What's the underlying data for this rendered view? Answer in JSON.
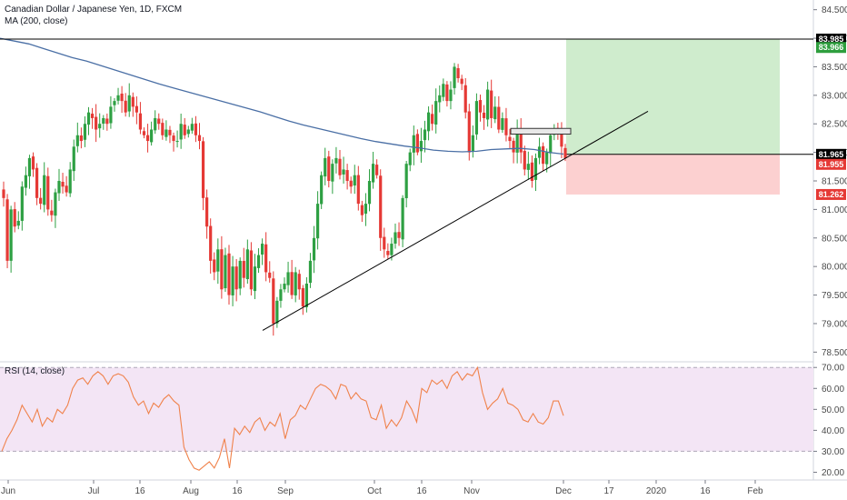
{
  "header": {
    "title": "Canadian Dollar / Japanese Yen, 1D, FXCM",
    "ma_label": "MA (200, close)",
    "rsi_label": "RSI (14, close)"
  },
  "colors": {
    "up": "#26a69a",
    "down": "#ef5350",
    "up_candle": "#2ea043",
    "down_candle": "#e53935",
    "ma": "#4a6fa5",
    "rsi": "#f0824b",
    "rsi_band": "#f3e5f5",
    "profit_zone": "#cfeccd",
    "loss_zone": "#fcd0d0",
    "level_tag_black": "#000000",
    "level_tag_green": "#2e9e3e",
    "level_tag_red": "#e53935"
  },
  "chart_data": [
    {
      "type": "candlestick",
      "title": "Canadian Dollar / Japanese Yen, 1D, FXCM",
      "xlabel": "",
      "ylabel": "",
      "ylim": [
        78.33,
        84.67
      ],
      "y_ticks": [
        "84.500",
        "84.000",
        "83.500",
        "83.000",
        "82.500",
        "82.000",
        "81.500",
        "81.000",
        "80.500",
        "80.000",
        "79.500",
        "79.000",
        "78.500"
      ],
      "x_ticks": [
        "Jun",
        "Jul",
        "16",
        "Aug",
        "16",
        "Sep",
        "Oct",
        "16",
        "Nov",
        "Dec",
        "17",
        "2020",
        "16",
        "Feb"
      ],
      "candles_close": [
        81.2,
        80.1,
        81.0,
        80.7,
        80.8,
        81.4,
        81.6,
        81.9,
        81.7,
        81.2,
        81.1,
        81.6,
        81.0,
        80.9,
        81.3,
        81.5,
        81.4,
        81.3,
        81.7,
        82.1,
        82.3,
        82.2,
        82.5,
        82.7,
        82.6,
        82.4,
        82.5,
        82.6,
        82.5,
        82.8,
        82.9,
        83.0,
        82.9,
        82.7,
        83.0,
        82.8,
        82.7,
        82.4,
        82.3,
        82.2,
        82.4,
        82.6,
        82.5,
        82.3,
        82.4,
        82.3,
        82.2,
        82.2,
        82.5,
        82.3,
        82.4,
        82.5,
        82.3,
        82.2,
        81.2,
        80.7,
        80.1,
        79.9,
        80.3,
        79.6,
        80.2,
        79.5,
        80.0,
        79.6,
        80.1,
        79.8,
        80.3,
        79.6,
        80.0,
        80.2,
        80.4,
        79.9,
        79.8,
        79.0,
        79.4,
        79.6,
        79.7,
        79.9,
        79.5,
        79.9,
        79.6,
        79.3,
        79.7,
        80.1,
        80.5,
        81.1,
        81.6,
        81.9,
        81.5,
        81.8,
        81.9,
        81.6,
        81.7,
        81.5,
        81.4,
        81.6,
        81.1,
        80.9,
        81.1,
        81.5,
        81.8,
        81.6,
        80.5,
        80.3,
        80.2,
        80.4,
        80.6,
        80.5,
        81.2,
        81.8,
        82.0,
        82.3,
        82.0,
        82.2,
        82.4,
        82.7,
        82.5,
        82.9,
        83.0,
        83.2,
        82.9,
        83.1,
        83.5,
        83.3,
        83.2,
        82.7,
        82.0,
        82.3,
        82.9,
        82.7,
        82.6,
        83.1,
        82.6,
        82.8,
        82.4,
        82.6,
        82.3,
        82.2,
        82.0,
        82.4,
        82.0,
        81.7,
        81.8,
        81.5,
        81.9,
        82.1,
        81.8,
        82.0,
        82.3,
        82.4,
        82.4,
        82.1,
        81.9
      ],
      "moving_average": {
        "name": "MA (200, close)",
        "values": [
          84.0,
          83.95,
          83.9,
          83.82,
          83.74,
          83.66,
          83.6,
          83.52,
          83.44,
          83.36,
          83.28,
          83.2,
          83.13,
          83.06,
          82.99,
          82.92,
          82.85,
          82.78,
          82.71,
          82.63,
          82.55,
          82.48,
          82.42,
          82.36,
          82.3,
          82.24,
          82.19,
          82.15,
          82.11,
          82.08,
          82.04,
          82.02,
          82.01,
          82.02,
          82.05,
          82.06,
          82.07,
          82.05,
          82.0,
          81.97
        ]
      },
      "trendline": {
        "from": [
          "Aug 22",
          78.88
        ],
        "to": [
          "Dec 27",
          82.72
        ]
      },
      "horizontal_line": 83.985,
      "position": {
        "entry": 81.965,
        "target": 83.985,
        "stop": 81.262
      },
      "price_tags": [
        {
          "label": "83.985",
          "value": 83.985,
          "color": "black"
        },
        {
          "label": "83.966",
          "value": 83.838,
          "color": "green"
        },
        {
          "label": "81.965",
          "value": 81.965,
          "color": "black"
        },
        {
          "label": "81.955",
          "value": 81.79,
          "color": "red"
        },
        {
          "label": "81.262",
          "value": 81.262,
          "color": "red"
        }
      ]
    },
    {
      "type": "line",
      "title": "RSI (14, close)",
      "ylim": [
        16.3,
        72.7
      ],
      "y_ticks": [
        "70.00",
        "60.00",
        "50.00",
        "40.00",
        "30.00",
        "20.00"
      ],
      "band": [
        30,
        70
      ],
      "series": [
        {
          "name": "RSI (14, close)",
          "values": [
            30,
            36,
            40,
            45,
            52,
            48,
            44,
            50,
            42,
            46,
            44,
            50,
            48,
            52,
            60,
            64,
            65,
            62,
            66,
            68,
            66,
            62,
            66,
            67,
            66,
            63,
            56,
            52,
            54,
            48,
            53,
            51,
            55,
            57,
            54,
            52,
            32,
            26,
            22,
            21,
            23,
            25,
            22,
            27,
            36,
            22,
            41,
            38,
            42,
            39,
            44,
            46,
            40,
            44,
            42,
            48,
            36,
            45,
            47,
            52,
            50,
            55,
            60,
            62,
            61,
            59,
            55,
            62,
            61,
            55,
            58,
            55,
            54,
            46,
            45,
            52,
            41,
            45,
            42,
            46,
            54,
            50,
            44,
            60,
            58,
            64,
            62,
            64,
            60,
            66,
            68,
            64,
            67,
            66,
            70,
            58,
            50,
            53,
            55,
            60,
            53,
            52,
            50,
            45,
            44,
            48,
            44,
            43,
            46,
            54,
            54,
            47
          ]
        }
      ]
    }
  ]
}
